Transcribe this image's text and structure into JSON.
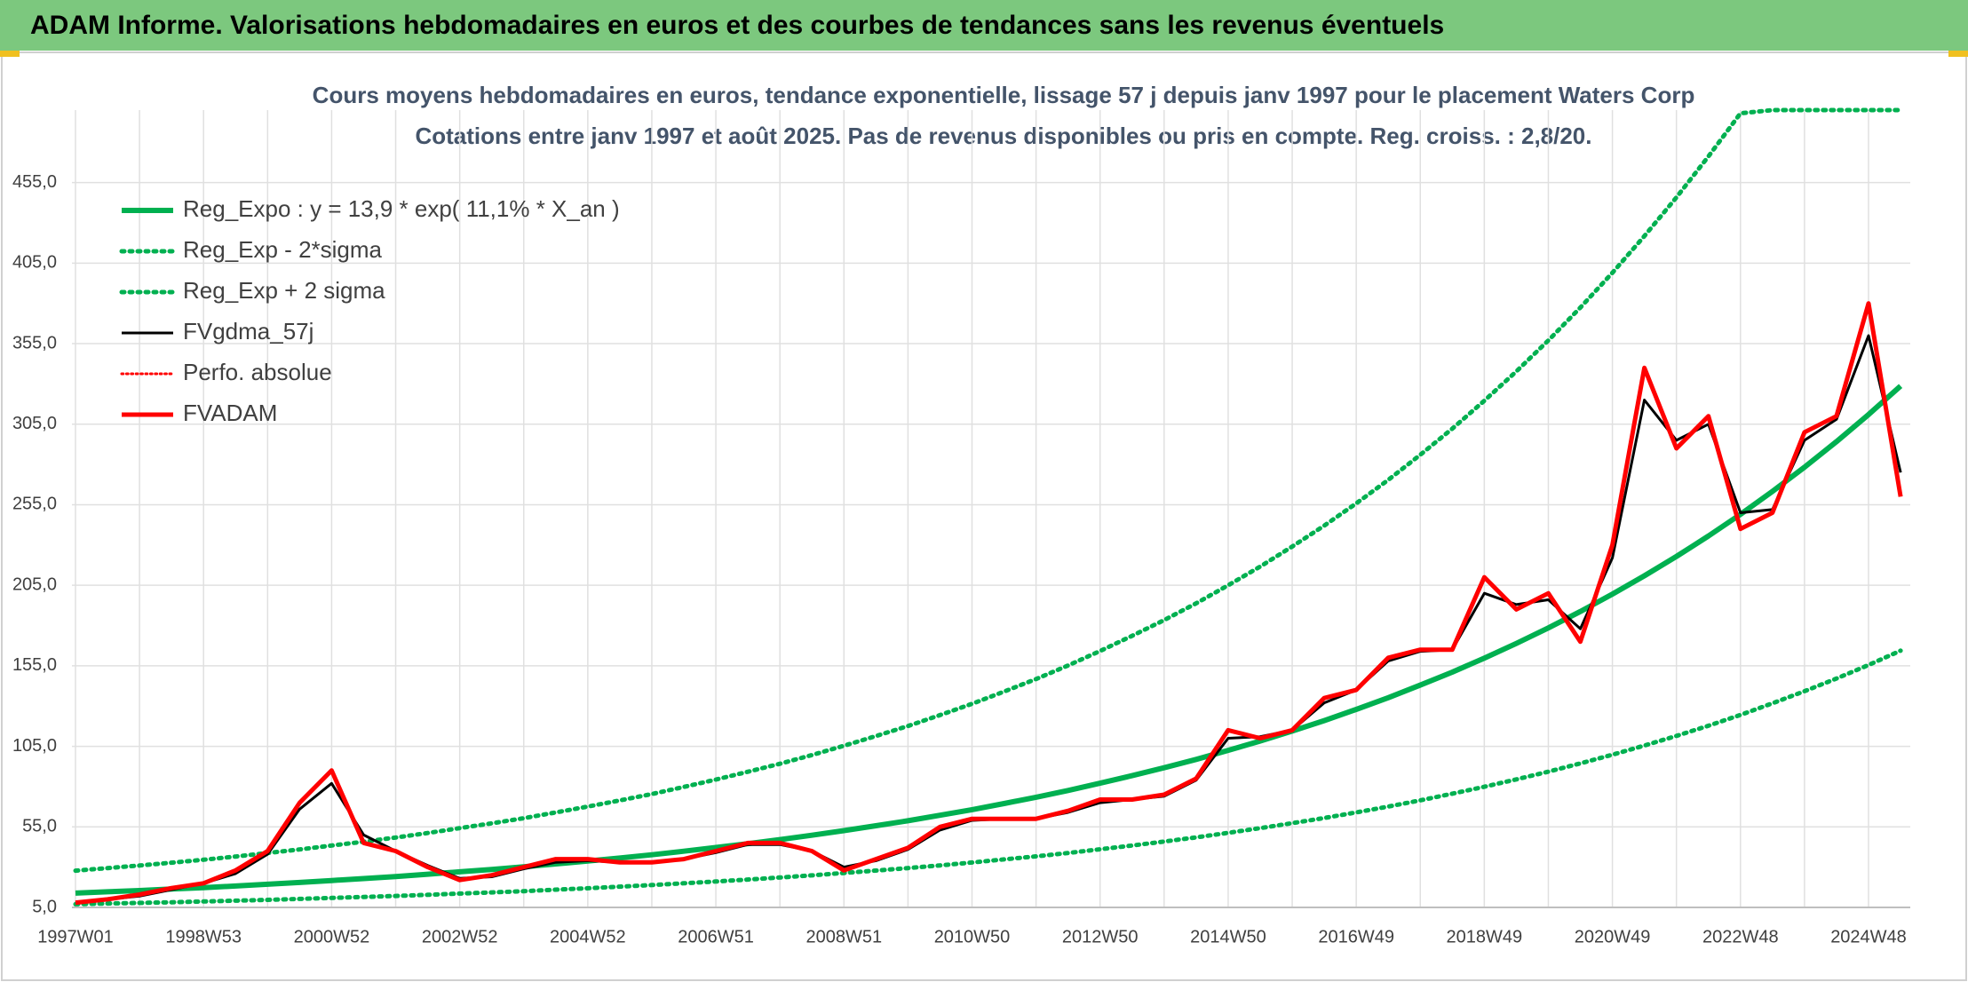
{
  "chart_data": {
    "type": "line",
    "title": "ADAM Informe. Valorisations hebdomadaires en euros et des courbes de tendances sans les revenus éventuels",
    "subtitle": [
      "Cours moyens hebdomadaires en euros, tendance exponentielle, lissage 57 j depuis janv 1997 pour le placement Waters Corp",
      "Cotations entre janv 1997 et août 2025. Pas de revenus disponibles ou pris en compte. Reg. croiss. : 2,8/20."
    ],
    "categories": [
      "1997W01",
      null,
      null,
      null,
      "1998W53",
      null,
      null,
      null,
      "2000W52",
      null,
      null,
      null,
      "2002W52",
      null,
      null,
      null,
      "2004W52",
      null,
      null,
      null,
      "2006W51",
      null,
      null,
      null,
      "2008W51",
      null,
      null,
      null,
      "2010W50",
      null,
      null,
      null,
      "2012W50",
      null,
      null,
      null,
      "2014W50",
      null,
      null,
      null,
      "2016W49",
      null,
      null,
      null,
      "2018W49",
      null,
      null,
      null,
      "2020W49",
      null,
      null,
      null,
      "2022W48",
      null,
      null,
      null,
      "2024W48",
      null
    ],
    "ylim": [
      5,
      500
    ],
    "yticks": [
      {
        "value": 5,
        "label": "5,0"
      },
      {
        "value": 55,
        "label": "55,0"
      },
      {
        "value": 105,
        "label": "105,0"
      },
      {
        "value": 155,
        "label": "155,0"
      },
      {
        "value": 205,
        "label": "205,0"
      },
      {
        "value": 255,
        "label": "255,0"
      },
      {
        "value": 305,
        "label": "305,0"
      },
      {
        "value": 355,
        "label": "355,0"
      },
      {
        "value": 405,
        "label": "405,0"
      },
      {
        "value": 455,
        "label": "455,0"
      }
    ],
    "grid": true,
    "legend": "upper left",
    "series": [
      {
        "name": "Reg_Expo : y = 13,9 * exp( 11,1% *  X_an )",
        "color": "#00b050",
        "style": "solid",
        "width": 6,
        "values": [
          13.9,
          14.7,
          15.5,
          16.4,
          17.3,
          18.3,
          19.4,
          20.5,
          21.7,
          22.9,
          24.2,
          25.6,
          27.1,
          28.6,
          30.2,
          32.0,
          33.8,
          35.7,
          37.7,
          39.9,
          42.2,
          44.6,
          47.1,
          49.8,
          52.7,
          55.7,
          58.8,
          62.2,
          65.7,
          69.5,
          73.4,
          77.6,
          82.1,
          86.8,
          91.7,
          96.9,
          102.5,
          108.3,
          114.5,
          121.0,
          127.9,
          135.2,
          143.0,
          151.1,
          159.8,
          168.9,
          178.5,
          188.7,
          199.5,
          210.9,
          222.9,
          235.6,
          249.0,
          263.3,
          278.3,
          294.2,
          311.0,
          328.7
        ]
      },
      {
        "name": "Reg_Exp - 2*sigma",
        "color": "#00b050",
        "style": "dot",
        "width": 5,
        "values": [
          7.0,
          7.4,
          7.8,
          8.2,
          8.7,
          9.2,
          9.7,
          10.3,
          10.9,
          11.5,
          12.1,
          12.8,
          13.6,
          14.3,
          15.1,
          16.0,
          16.9,
          17.9,
          18.9,
          20.0,
          21.1,
          22.3,
          23.6,
          24.9,
          26.4,
          27.9,
          29.4,
          31.1,
          32.9,
          34.8,
          36.7,
          38.8,
          41.1,
          43.4,
          45.9,
          48.5,
          51.3,
          54.2,
          57.3,
          60.5,
          64.0,
          67.6,
          71.5,
          75.6,
          79.9,
          84.5,
          89.3,
          94.4,
          99.8,
          105.5,
          111.5,
          117.8,
          124.5,
          131.7,
          139.2,
          147.1,
          155.5,
          164.4
        ]
      },
      {
        "name": "Reg_Exp + 2 sigma",
        "color": "#00b050",
        "style": "dot",
        "width": 5,
        "values": [
          27.8,
          29.4,
          31.0,
          32.8,
          34.6,
          36.6,
          38.8,
          41.0,
          43.4,
          45.8,
          48.4,
          51.2,
          54.2,
          57.2,
          60.4,
          64.0,
          67.6,
          71.4,
          75.4,
          79.8,
          84.4,
          89.2,
          94.2,
          99.6,
          105.4,
          111.4,
          117.6,
          124.4,
          131.4,
          139.0,
          146.8,
          155.2,
          164.2,
          173.6,
          183.4,
          193.8,
          205.0,
          216.6,
          229.0,
          242.0,
          255.8,
          270.4,
          286.0,
          302.2,
          319.6,
          337.8,
          357.0,
          377.4,
          399.0,
          421.8,
          445.8,
          471.2,
          498.0,
          500,
          500,
          500,
          500,
          500
        ]
      },
      {
        "name": "FVgdma_57j",
        "color": "#000000",
        "style": "solid",
        "width": 3,
        "values": [
          8,
          10,
          12,
          16,
          20,
          26,
          38,
          66,
          82,
          50,
          40,
          31,
          23,
          24,
          29,
          33,
          34,
          33,
          33,
          35,
          39,
          44,
          44,
          40,
          30,
          34,
          41,
          53,
          59,
          60,
          60,
          64,
          70,
          72,
          74,
          84,
          110,
          111,
          115,
          132,
          140,
          158,
          164,
          165,
          200,
          193,
          196,
          178,
          222,
          320,
          295,
          305,
          250,
          252,
          295,
          308,
          360,
          275
        ]
      },
      {
        "name": "Perfo. absolue",
        "color": "#ff0000",
        "style": "dot",
        "width": 3,
        "values": [
          null,
          null,
          null,
          null,
          null,
          null,
          null,
          null,
          null,
          null,
          null,
          null,
          null,
          null,
          null,
          null,
          null,
          null,
          null,
          null,
          null,
          null,
          null,
          null,
          null,
          null,
          null,
          null,
          null,
          null,
          null,
          null,
          null,
          null,
          null,
          null,
          null,
          null,
          null,
          null,
          null,
          null,
          null,
          null,
          null,
          null,
          null,
          null,
          null,
          null,
          null,
          null,
          null,
          null,
          null,
          null,
          null,
          null
        ]
      },
      {
        "name": "FVADAM",
        "color": "#ff0000",
        "style": "solid",
        "width": 5,
        "values": [
          8,
          10,
          13,
          17,
          20,
          28,
          40,
          70,
          90,
          45,
          40,
          30,
          22,
          25,
          30,
          35,
          35,
          33,
          33,
          35,
          40,
          45,
          45,
          40,
          28,
          35,
          42,
          55,
          60,
          60,
          60,
          65,
          72,
          72,
          75,
          85,
          115,
          110,
          115,
          135,
          140,
          160,
          165,
          165,
          210,
          190,
          200,
          170,
          230,
          340,
          290,
          310,
          240,
          250,
          300,
          310,
          380,
          260
        ]
      }
    ]
  }
}
